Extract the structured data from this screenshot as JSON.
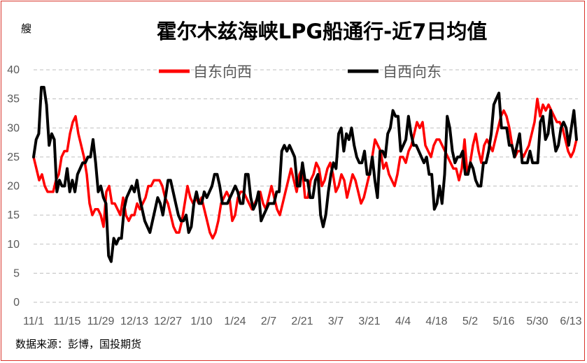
{
  "chart_data": {
    "type": "line",
    "title": "霍尔木兹海峡LPG船通行-近7日均值",
    "ylabel": "艘",
    "ylim": [
      0,
      40
    ],
    "yticks": [
      0,
      5,
      10,
      15,
      20,
      25,
      30,
      35,
      40
    ],
    "x_tick_labels": [
      "11/1",
      "11/15",
      "11/29",
      "12/13",
      "12/27",
      "1/10",
      "1/24",
      "2/7",
      "2/21",
      "3/7",
      "3/21",
      "4/4",
      "4/18",
      "5/2",
      "5/16",
      "5/30",
      "6/13"
    ],
    "grid": true,
    "legend_position": "top",
    "source": "数据来源：彭博，国投期货",
    "colors": {
      "series1": "#ff0000",
      "series2": "#000000",
      "grid": "#bfbfbf",
      "axis_text": "#595959"
    },
    "series": [
      {
        "name": "自东向西",
        "color": "#ff0000",
        "values": [
          25,
          23,
          21,
          22,
          20,
          19,
          19,
          19,
          21,
          22,
          25,
          26,
          26,
          29,
          31,
          32,
          29,
          27,
          25,
          22,
          17,
          15,
          16,
          16,
          15,
          13,
          19,
          20,
          17,
          17,
          16,
          15,
          18,
          15,
          14,
          15,
          15,
          17,
          16,
          17,
          18,
          20,
          20,
          21,
          21,
          21,
          20,
          18,
          17,
          15,
          13,
          12,
          12,
          14,
          17,
          20,
          18,
          17,
          18,
          17,
          18,
          16,
          14,
          12,
          11,
          12,
          14,
          17,
          18,
          19,
          18,
          14,
          15,
          18,
          19,
          19,
          18,
          17,
          16,
          17,
          18,
          19,
          17,
          16,
          18,
          20,
          18,
          16,
          15,
          17,
          19,
          21,
          23,
          21,
          19,
          22,
          23,
          18,
          18,
          21,
          22,
          24,
          23,
          20,
          21,
          23,
          24,
          22,
          19,
          20,
          22,
          21,
          18,
          20,
          22,
          21,
          19,
          17,
          18,
          20,
          22,
          25,
          28,
          27,
          26,
          23,
          24,
          22,
          21,
          20,
          22,
          25,
          25,
          24,
          26,
          27,
          29,
          31,
          30,
          31,
          27,
          26,
          25,
          27,
          28,
          28,
          27,
          26,
          25,
          24,
          23,
          23,
          21,
          23,
          28,
          22,
          24,
          27,
          29,
          26,
          24,
          27,
          28,
          27,
          26,
          28,
          30,
          32,
          33,
          32,
          30,
          27,
          25,
          26,
          26,
          25,
          26,
          27,
          29,
          31,
          35,
          32,
          34,
          33,
          34,
          33,
          32,
          31,
          31,
          30,
          28,
          26,
          25,
          26,
          28
        ]
      },
      {
        "name": "自西向东",
        "color": "#000000",
        "values": [
          25,
          28,
          29,
          37,
          37,
          34,
          27,
          29,
          28,
          19,
          21,
          20,
          20,
          23,
          19,
          21,
          19,
          22,
          23,
          24,
          24,
          25,
          25,
          28,
          24,
          19,
          20,
          18,
          17,
          8,
          7,
          11,
          10,
          11,
          11,
          16,
          18,
          19,
          20,
          19,
          21,
          18,
          16,
          14,
          13,
          12,
          14,
          16,
          18,
          17,
          15,
          18,
          21,
          21,
          19,
          17,
          15,
          14,
          14,
          15,
          12,
          13,
          17,
          19,
          17,
          17,
          19,
          18,
          19,
          20,
          22,
          22,
          20,
          17,
          17,
          17,
          18,
          19,
          20,
          19,
          17,
          17,
          22,
          22,
          18,
          16,
          17,
          19,
          14,
          15,
          16,
          17,
          17,
          17,
          19,
          19,
          26,
          27,
          26,
          27,
          26,
          25,
          20,
          20,
          24,
          21,
          21,
          18,
          18,
          21,
          22,
          15,
          13,
          15,
          19,
          22,
          24,
          23,
          29,
          30,
          26,
          29,
          28,
          30,
          27,
          25,
          24,
          24,
          26,
          22,
          22,
          25,
          21,
          18,
          26,
          26,
          25,
          29,
          30,
          33,
          32,
          32,
          26,
          27,
          28,
          32,
          29,
          27,
          27,
          26,
          25,
          24,
          25,
          22,
          22,
          16,
          17,
          20,
          17,
          22,
          32,
          30,
          26,
          24,
          25,
          25,
          26,
          22,
          22,
          24,
          23,
          21,
          20,
          20,
          24,
          24,
          26,
          29,
          34,
          35,
          36,
          30,
          30,
          30,
          27,
          27,
          25,
          27,
          29,
          24,
          24,
          24,
          26,
          24,
          24,
          24,
          31,
          32,
          28,
          29,
          33,
          29,
          26,
          27,
          30,
          31,
          30,
          27,
          30,
          33,
          28
        ]
      }
    ]
  }
}
